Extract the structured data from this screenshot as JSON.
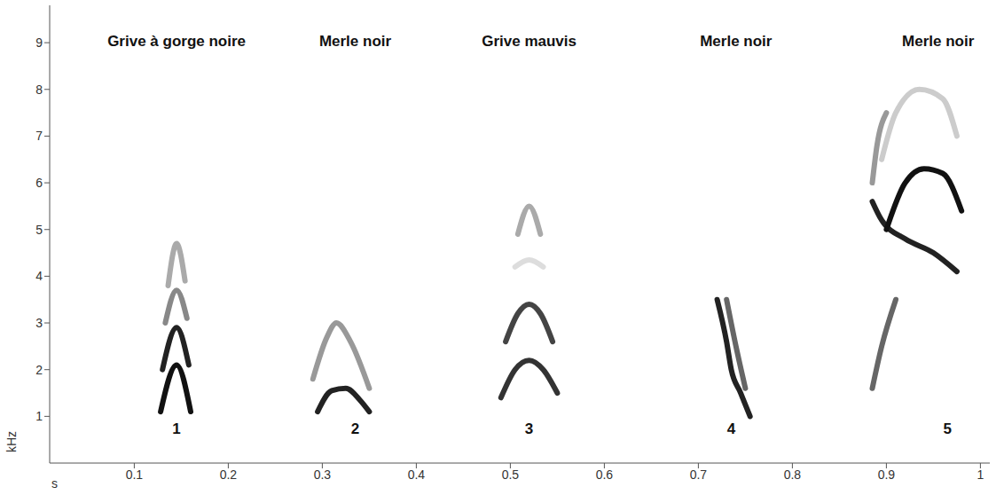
{
  "chart_data": {
    "type": "line",
    "xlabel": "s",
    "ylabel": "kHz",
    "xlim": [
      0.01,
      1.01
    ],
    "xticks": [
      0.1,
      0.2,
      0.3,
      0.4,
      0.5,
      0.6,
      0.7,
      0.8,
      0.9,
      1
    ],
    "ylim": [
      0,
      9.8
    ],
    "yticks": [
      1,
      2,
      3,
      4,
      5,
      6,
      7,
      8,
      9
    ],
    "grid": false,
    "annotations": [
      {
        "text": "Grive à gorge noire",
        "x": 0.145,
        "y": 9.05
      },
      {
        "text": "Merle noir",
        "x": 0.335,
        "y": 9.05
      },
      {
        "text": "Grive mauvis",
        "x": 0.52,
        "y": 9.05
      },
      {
        "text": "Merle noir",
        "x": 0.74,
        "y": 9.05
      },
      {
        "text": "Merle noir",
        "x": 0.955,
        "y": 9.05
      },
      {
        "text": "1",
        "x": 0.145,
        "y": 0.75
      },
      {
        "text": "2",
        "x": 0.335,
        "y": 0.75
      },
      {
        "text": "3",
        "x": 0.52,
        "y": 0.75
      },
      {
        "text": "4",
        "x": 0.735,
        "y": 0.75
      },
      {
        "text": "5",
        "x": 0.965,
        "y": 0.75
      }
    ],
    "series": [
      {
        "color": "#111111",
        "x": [
          0.128,
          0.145,
          0.16
        ],
        "values": [
          1.1,
          2.1,
          1.1
        ]
      },
      {
        "color": "#222222",
        "x": [
          0.13,
          0.145,
          0.158
        ],
        "values": [
          2.0,
          2.9,
          2.1
        ]
      },
      {
        "color": "#888888",
        "x": [
          0.133,
          0.145,
          0.156
        ],
        "values": [
          3.0,
          3.7,
          3.1
        ]
      },
      {
        "color": "#aaaaaa",
        "x": [
          0.136,
          0.145,
          0.154
        ],
        "values": [
          3.8,
          4.7,
          3.9
        ]
      },
      {
        "color": "#222222",
        "x": [
          0.295,
          0.31,
          0.325,
          0.34,
          0.35
        ],
        "values": [
          1.1,
          1.55,
          1.6,
          1.35,
          1.1
        ]
      },
      {
        "color": "#999999",
        "x": [
          0.29,
          0.305,
          0.315,
          0.33,
          0.35
        ],
        "values": [
          1.8,
          2.7,
          3.0,
          2.6,
          1.6
        ]
      },
      {
        "color": "#333333",
        "x": [
          0.49,
          0.505,
          0.52,
          0.535,
          0.55
        ],
        "values": [
          1.4,
          2.0,
          2.2,
          2.0,
          1.5
        ]
      },
      {
        "color": "#444444",
        "x": [
          0.495,
          0.508,
          0.52,
          0.532,
          0.545
        ],
        "values": [
          2.6,
          3.2,
          3.4,
          3.2,
          2.6
        ]
      },
      {
        "color": "#dddddd",
        "x": [
          0.505,
          0.52,
          0.535
        ],
        "values": [
          4.2,
          4.35,
          4.2
        ]
      },
      {
        "color": "#aaaaaa",
        "x": [
          0.508,
          0.52,
          0.532
        ],
        "values": [
          4.9,
          5.5,
          4.9
        ]
      },
      {
        "color": "#222222",
        "x": [
          0.72,
          0.73,
          0.735,
          0.745,
          0.755
        ],
        "values": [
          3.5,
          2.6,
          2.0,
          1.5,
          1.0
        ]
      },
      {
        "color": "#666666",
        "x": [
          0.73,
          0.74,
          0.75
        ],
        "values": [
          3.5,
          2.5,
          1.6
        ]
      },
      {
        "color": "#666666",
        "x": [
          0.885,
          0.895,
          0.91
        ],
        "values": [
          1.6,
          2.5,
          3.5
        ]
      },
      {
        "color": "#222222",
        "x": [
          0.885,
          0.895,
          0.92,
          0.95,
          0.975
        ],
        "values": [
          5.6,
          5.2,
          4.8,
          4.5,
          4.1
        ]
      },
      {
        "color": "#111111",
        "x": [
          0.9,
          0.92,
          0.94,
          0.96,
          0.98
        ],
        "values": [
          5.0,
          6.0,
          6.3,
          6.2,
          5.4
        ]
      },
      {
        "color": "#cccccc",
        "x": [
          0.895,
          0.91,
          0.935,
          0.96,
          0.975
        ],
        "values": [
          6.5,
          7.5,
          8.0,
          7.8,
          7.0
        ]
      },
      {
        "color": "#999999",
        "x": [
          0.885,
          0.89,
          0.9
        ],
        "values": [
          6.0,
          6.8,
          7.5
        ]
      }
    ]
  }
}
